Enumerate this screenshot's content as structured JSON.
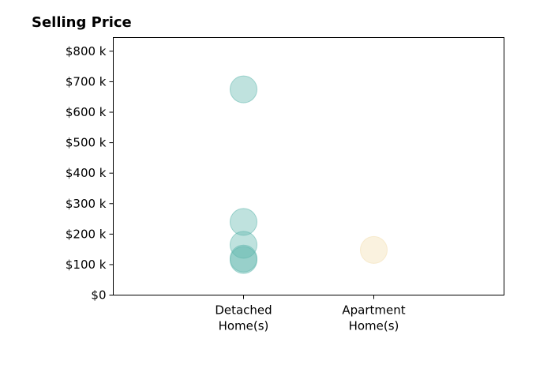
{
  "chart_data": {
    "type": "scatter",
    "title": "Selling Price",
    "xlabel": "",
    "ylabel": "",
    "categories": [
      "Detached Home(s)",
      "Apartment Home(s)"
    ],
    "category_tick_lines": [
      [
        "Detached",
        "Home(s)"
      ],
      [
        "Apartment",
        "Home(s)"
      ]
    ],
    "y_ticks": [
      0,
      100000,
      200000,
      300000,
      400000,
      500000,
      600000,
      700000,
      800000
    ],
    "y_tick_labels": [
      "$0",
      "$100 k",
      "$200 k",
      "$300 k",
      "$400 k",
      "$500 k",
      "$600 k",
      "$700 k",
      "$800 k"
    ],
    "ylim": [
      0,
      845000
    ],
    "xlim": [
      -1,
      2
    ],
    "grid": false,
    "legend": "none",
    "series": [
      {
        "color": "#5fb7ad",
        "points": [
          {
            "category": "Detached Home(s)",
            "y": 675000
          },
          {
            "category": "Detached Home(s)",
            "y": 240000
          },
          {
            "category": "Detached Home(s)",
            "y": 165000
          },
          {
            "category": "Detached Home(s)",
            "y": 120000
          },
          {
            "category": "Detached Home(s)",
            "y": 115000
          }
        ]
      },
      {
        "color": "#f2dfb0",
        "points": [
          {
            "category": "Apartment Home(s)",
            "y": 148000
          }
        ]
      }
    ]
  }
}
